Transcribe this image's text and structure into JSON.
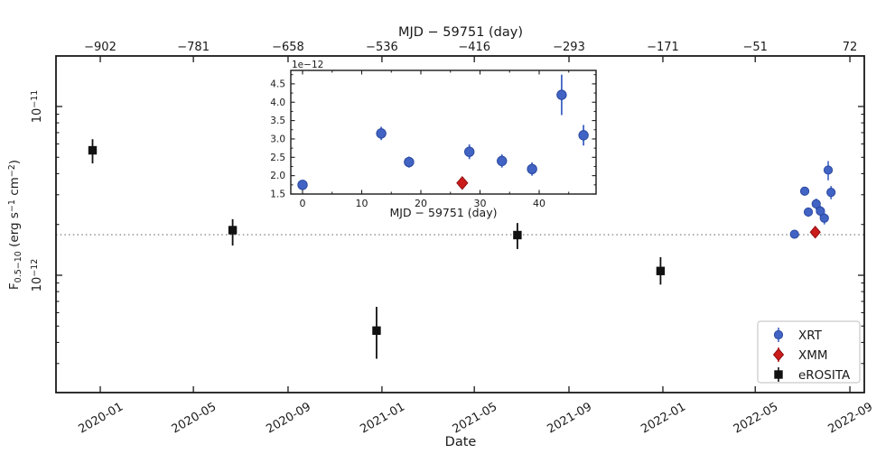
{
  "figure": {
    "background": "#ffffff",
    "axis_color": "#1a1a1a",
    "legend": {
      "entries": [
        {
          "label": "XRT",
          "marker": "circle",
          "color": "#4163C4",
          "edge": "#2C4AA0"
        },
        {
          "label": "XMM",
          "marker": "diamond",
          "color": "#CB1B1B",
          "edge": "#8F1111"
        },
        {
          "label": "eROSITA",
          "marker": "square",
          "color": "#111111",
          "edge": "#111111"
        }
      ]
    }
  },
  "chart_data": {
    "type": "scatter",
    "flux_units": "1e-12 erg s−1 cm−2",
    "main": {
      "xlabel": "Date",
      "top_label": "MJD − 59751 (day)",
      "ylabel": "F0.5−10 (erg s−1 cm−2)",
      "ylabel_parts": [
        {
          "t": "F"
        },
        {
          "t": "0.5−10",
          "sub": true
        },
        {
          "t": " (erg s"
        },
        {
          "t": "−1",
          "sup": true
        },
        {
          "t": " cm"
        },
        {
          "t": "−2",
          "sup": true
        },
        {
          "t": ")"
        }
      ],
      "x_ticks": {
        "days": [
          -902,
          -781,
          -658,
          -536,
          -416,
          -293,
          -171,
          -51,
          72
        ],
        "top_labels": [
          "−902",
          "−781",
          "−658",
          "−536",
          "−416",
          "−293",
          "−171",
          "−51",
          "72"
        ],
        "bottom_labels": [
          "2020-01",
          "2020-05",
          "2020-09",
          "2021-01",
          "2021-05",
          "2021-09",
          "2022-01",
          "2022-05",
          "2022-09"
        ]
      },
      "y_ticks": [
        {
          "value_1e12": 10,
          "parts": [
            {
              "t": "10"
            },
            {
              "t": "−11",
              "sup": true
            }
          ]
        },
        {
          "value_1e12": 1,
          "parts": [
            {
              "t": "10"
            },
            {
              "t": "−12",
              "sup": true
            }
          ]
        }
      ],
      "y_minor_ticks_1e12": [
        0.3,
        0.4,
        0.5,
        0.6,
        0.7,
        0.8,
        0.9,
        2,
        3,
        4,
        5,
        6,
        7,
        8,
        9
      ],
      "xlim_days": [
        -959,
        91
      ],
      "ylim_1e12": [
        0.202,
        19.9
      ],
      "y_scale": "log",
      "hline": {
        "flux_1e12": 1.74,
        "style": "dotted",
        "color": "#8a8a8a"
      }
    },
    "inset": {
      "xlabel": "MJD − 59751 (day)",
      "offset_label": "1e−12",
      "x_ticks": [
        0,
        10,
        20,
        30,
        40
      ],
      "x_minor_ticks": [
        5,
        15,
        25,
        35,
        45
      ],
      "y_ticks": [
        "1.5",
        "2.0",
        "2.5",
        "3.0",
        "3.5",
        "4.0",
        "4.5"
      ],
      "y_minor_step": 0.25,
      "xlim": [
        -2,
        49.6
      ],
      "ylim": [
        1.5,
        4.87
      ]
    },
    "series": [
      {
        "name": "XRT",
        "marker": "circle",
        "color": "#4163C4",
        "edge": "#2C4AA0",
        "points": [
          {
            "day": 0.0,
            "flux": 1.75,
            "err": 0.1
          },
          {
            "day": 13.3,
            "flux": 3.15,
            "err": 0.18
          },
          {
            "day": 18.0,
            "flux": 2.37,
            "err": 0.15
          },
          {
            "day": 28.2,
            "flux": 2.65,
            "err": 0.2
          },
          {
            "day": 33.7,
            "flux": 2.4,
            "err": 0.18
          },
          {
            "day": 38.8,
            "flux": 2.18,
            "err": 0.18
          },
          {
            "day": 43.8,
            "flux": 4.2,
            "err": 0.55
          },
          {
            "day": 47.5,
            "flux": 3.1,
            "err": 0.28
          }
        ]
      },
      {
        "name": "XMM",
        "marker": "diamond",
        "color": "#CB1B1B",
        "edge": "#8F1111",
        "points": [
          {
            "day": 27.0,
            "flux": 1.8,
            "err": 0.06
          }
        ]
      },
      {
        "name": "eROSITA",
        "marker": "square",
        "color": "#111111",
        "edge": "#111111",
        "points": [
          {
            "day": -912,
            "flux": 5.5,
            "err_lo": 0.9,
            "err_hi": 0.9
          },
          {
            "day": -730,
            "flux": 1.85,
            "err_lo": 0.35,
            "err_hi": 0.3
          },
          {
            "day": -543,
            "flux": 0.47,
            "err_lo": 0.15,
            "err_hi": 0.18
          },
          {
            "day": -360,
            "flux": 1.73,
            "err_lo": 0.3,
            "err_hi": 0.31
          },
          {
            "day": -174,
            "flux": 1.06,
            "err_lo": 0.18,
            "err_hi": 0.22
          }
        ]
      }
    ]
  }
}
